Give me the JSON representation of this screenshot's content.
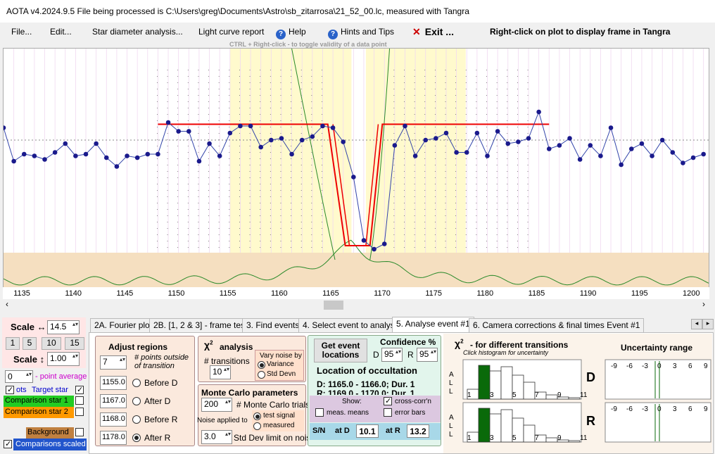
{
  "window_title": "AOTA v4.2024.9.5     File being processed is C:\\Users\\greg\\Documents\\Astro\\sb_zitarrosa\\21_52_00.lc, measured with Tangra",
  "menu": {
    "file": "File...",
    "edit": "Edit...",
    "star_diameter": "Star diameter analysis...",
    "light_curve": "Light curve report",
    "help": "Help",
    "hints": "Hints and Tips",
    "exit": "Exit ...",
    "right_click": "Right-click on plot to display frame in Tangra"
  },
  "plot_hint": "CTRL + Right-click  -  to toggle validity of a data point",
  "x_ticks": [
    "1135",
    "1140",
    "1145",
    "1150",
    "1155",
    "1160",
    "1165",
    "1170",
    "1175",
    "1180",
    "1185",
    "1190",
    "1195",
    "1200"
  ],
  "chart_data": {
    "type": "line",
    "x_range": [
      1133,
      1201.5
    ],
    "y_range": [
      0,
      1
    ],
    "series": [
      {
        "x": [
          1133,
          1134,
          1135,
          1136,
          1137,
          1138,
          1139,
          1140,
          1141,
          1142,
          1143,
          1144,
          1145,
          1146,
          1147,
          1148,
          1149,
          1150,
          1151,
          1152,
          1153,
          1154,
          1155,
          1156,
          1157,
          1158,
          1159,
          1160,
          1161,
          1162,
          1163,
          1164,
          1165,
          1166,
          1167,
          1168,
          1169,
          1170,
          1171,
          1172,
          1173,
          1174,
          1175,
          1176,
          1177,
          1178,
          1179,
          1180,
          1181,
          1182,
          1183,
          1184,
          1185,
          1186,
          1187,
          1188,
          1189,
          1190,
          1191,
          1192,
          1193,
          1194,
          1195,
          1196,
          1197,
          1198,
          1199,
          1200,
          1201
        ],
        "y": [
          0.71,
          0.52,
          0.56,
          0.55,
          0.53,
          0.57,
          0.62,
          0.55,
          0.56,
          0.62,
          0.54,
          0.49,
          0.55,
          0.54,
          0.56,
          0.56,
          0.74,
          0.69,
          0.69,
          0.52,
          0.62,
          0.55,
          0.68,
          0.72,
          0.72,
          0.6,
          0.64,
          0.65,
          0.56,
          0.64,
          0.66,
          0.72,
          0.71,
          0.63,
          0.43,
          0.07,
          0.02,
          0.05,
          0.61,
          0.72,
          0.55,
          0.64,
          0.65,
          0.68,
          0.57,
          0.57,
          0.68,
          0.55,
          0.69,
          0.62,
          0.63,
          0.65,
          0.8,
          0.59,
          0.61,
          0.65,
          0.53,
          0.61,
          0.55,
          0.71,
          0.5,
          0.59,
          0.62,
          0.55,
          0.64,
          0.57,
          0.51,
          0.54,
          0.56
        ]
      }
    ]
  },
  "scale": {
    "horiz_label": "Scale ↔",
    "horiz_value": "14.5",
    "vert_label": "Scale ↕",
    "vert_value": "1.00",
    "presets": [
      "1",
      "5",
      "10",
      "15"
    ]
  },
  "legend": {
    "avg_value": "0",
    "avg_label": "- point average",
    "obs_label": "ots",
    "target": "Target star",
    "comp1": "Comparison star 1",
    "comp2": "Comparison star 2",
    "background": "Background",
    "comps_scaled": "Comparisons scaled"
  },
  "tabs": [
    "2A. Fourier plot",
    "2B. [1, 2 & 3] - frame test",
    "3. Find events",
    "4. Select event to analyse",
    "5. Analyse event #1",
    "6. Camera corrections & final times Event #1"
  ],
  "adjust": {
    "title": "Adjust regions",
    "points_value": "7",
    "points_label": "# points outside of transition",
    "rows": [
      {
        "value": "1155.0",
        "label": "Before D"
      },
      {
        "value": "1167.0",
        "label": "After D"
      },
      {
        "value": "1168.0",
        "label": "Before R"
      },
      {
        "value": "1178.0",
        "label": "After R"
      }
    ]
  },
  "chi2": {
    "title": "analysis",
    "transitions_label": "# transitions",
    "transitions_value": "10",
    "vary_label": "Vary noise by",
    "variance": "Variance",
    "std_devn": "Std Devn"
  },
  "monte": {
    "title": "Monte Carlo parameters",
    "trials_value": "200",
    "trials_label": "# Monte Carlo trials",
    "noise_label": "Noise applied to",
    "test_signal": "test signal",
    "measured": "measured",
    "std_value": "3.0",
    "std_label": "Std Dev limit on noise"
  },
  "event": {
    "get_button": "Get event locations",
    "conf_title": "Confidence %",
    "d_label": "D",
    "d_value": "95",
    "r_label": "R",
    "r_value": "95",
    "loc_title": "Location of occultation",
    "d_line": "D: 1165.0 - 1166.0; Dur. 1",
    "r_line": "R: 1169.0 - 1170.0; Dur. 1",
    "show": "Show:",
    "cross_corr": "cross-corr'n",
    "meas_means": "meas. means",
    "error_bars": "error bars",
    "sn_label": "S/N",
    "at_d": "at D",
    "sn_d": "10.1",
    "at_r": "at R",
    "sn_r": "13.2"
  },
  "hist": {
    "title": "- for different transitions",
    "subtitle": "Click histogram for uncertainty",
    "ticks": [
      "1",
      "3",
      "5",
      "7",
      "9",
      "11"
    ],
    "axis": "A\nL\nL",
    "d": "D",
    "r": "R"
  },
  "uncert": {
    "title": "Uncertainty range",
    "ticks": [
      "-9",
      "-6",
      "-3",
      "0",
      "3",
      "6",
      "9"
    ]
  }
}
